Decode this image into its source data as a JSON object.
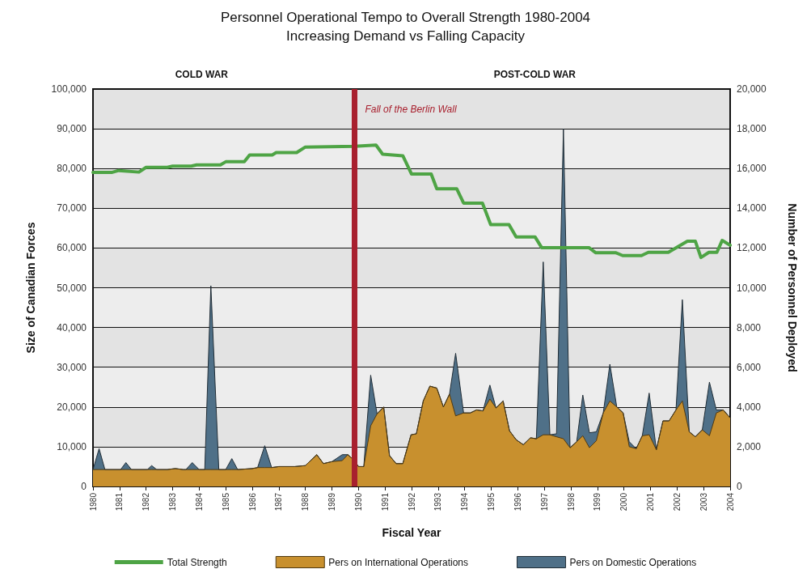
{
  "chart_data": {
    "type": "area",
    "title": "Personnel Operational Tempo to Overall Strength 1980-2004",
    "subtitle": "Increasing Demand vs Falling Capacity",
    "xlabel": "Fiscal Year",
    "ylabel": "Size of Canadian Forces",
    "y2label": "Number of Personnel Deployed",
    "annotations": [
      "COLD WAR",
      "POST-COLD WAR"
    ],
    "x": [
      1980,
      1980.23,
      1980.45,
      1981.04,
      1981.24,
      1981.45,
      1982.05,
      1982.21,
      1982.4,
      1982.8,
      1983.1,
      1983.4,
      1983.5,
      1983.74,
      1984,
      1984.21,
      1984.44,
      1984.74,
      1985,
      1985.23,
      1985.45,
      1986,
      1986.2,
      1986.47,
      1986.73,
      1987,
      1987.6,
      1988,
      1988.43,
      1988.68,
      1989,
      1989.39,
      1989.6,
      1989.85,
      1990,
      1990.2,
      1990.46,
      1990.7,
      1990.95,
      1991.17,
      1991.42,
      1991.67,
      1991.98,
      1992.18,
      1992.44,
      1992.69,
      1992.95,
      1993.2,
      1993.43,
      1993.66,
      1993.96,
      1994.21,
      1994.45,
      1994.69,
      1994.95,
      1995.18,
      1995.45,
      1995.69,
      1995.94,
      1996.21,
      1996.48,
      1996.7,
      1996.96,
      1997.21,
      1997.46,
      1997.72,
      1997.97,
      1998.22,
      1998.45,
      1998.7,
      1998.96,
      1999.22,
      1999.47,
      1999.73,
      1999.97,
      2000.2,
      2000.46,
      2000.69,
      2000.95,
      2001.22,
      2001.47,
      2001.7,
      2001.96,
      2002.2,
      2002.46,
      2002.69,
      2002.95,
      2003.22,
      2003.48,
      2003.74,
      2004
    ],
    "stacked": true,
    "series": [
      {
        "name": "Pers on International Operations",
        "axis": "y2",
        "color": "#c8902e",
        "values": [
          850,
          850,
          850,
          850,
          850,
          850,
          850,
          850,
          850,
          850,
          900,
          850,
          850,
          850,
          850,
          850,
          850,
          850,
          850,
          850,
          850,
          900,
          950,
          950,
          950,
          1000,
          1000,
          1050,
          1600,
          1150,
          1250,
          1300,
          1600,
          1300,
          1000,
          1000,
          3050,
          3650,
          4000,
          1550,
          1150,
          1150,
          2600,
          2650,
          4300,
          5050,
          4950,
          4000,
          4650,
          3550,
          3700,
          3700,
          3850,
          3800,
          4400,
          3950,
          4300,
          2800,
          2350,
          2100,
          2450,
          2400,
          2600,
          2600,
          2500,
          2400,
          1950,
          2250,
          2550,
          1950,
          2300,
          3700,
          4300,
          4000,
          3700,
          2000,
          1900,
          2550,
          2600,
          1850,
          3300,
          3300,
          3850,
          4300,
          2750,
          2500,
          2850,
          2550,
          3700,
          3850,
          3450
        ]
      },
      {
        "name": "Pers on Domestic Operations",
        "axis": "y2",
        "color": "#4f7088",
        "values": [
          0,
          1050,
          0,
          0,
          350,
          0,
          0,
          200,
          0,
          0,
          0,
          0,
          0,
          350,
          0,
          0,
          9250,
          0,
          0,
          550,
          0,
          0,
          0,
          1100,
          0,
          0,
          0,
          0,
          0,
          0,
          0,
          300,
          0,
          0,
          0,
          0,
          2550,
          0,
          0,
          0,
          0,
          0,
          0,
          0,
          0,
          0,
          0,
          0,
          0,
          3150,
          0,
          0,
          0,
          0,
          700,
          0,
          0,
          0,
          0,
          0,
          0,
          0,
          8700,
          0,
          150,
          15600,
          0,
          0,
          2050,
          750,
          450,
          0,
          1850,
          0,
          0,
          250,
          0,
          0,
          2100,
          0,
          0,
          0,
          0,
          5100,
          0,
          0,
          0,
          2700,
          150,
          0,
          0
        ]
      },
      {
        "name": "Total Strength",
        "type": "line",
        "color": "#4ea445",
        "x": [
          1980,
          1980.7,
          1980.97,
          1981.73,
          1982,
          1982.8,
          1983,
          1983.7,
          1983.9,
          1984.8,
          1985,
          1985.7,
          1985.9,
          1986.75,
          1986.9,
          1987.67,
          1988,
          1989.85,
          1990.66,
          1990.91,
          1991.67,
          1992,
          1992.74,
          1992.95,
          1993.7,
          1993.96,
          1994.67,
          1994.98,
          1995.67,
          1995.94,
          1996.65,
          1996.9,
          1998.68,
          1998.94,
          1999.7,
          1999.95,
          2000.66,
          2000.92,
          2001.67,
          2002.39,
          2002.69,
          2002.9,
          2003.2,
          2003.5,
          2003.7,
          2004
        ],
        "values": [
          79000,
          79000,
          79500,
          79100,
          80300,
          80300,
          80600,
          80600,
          80900,
          80900,
          81700,
          81700,
          83400,
          83400,
          84000,
          84000,
          85400,
          85600,
          85900,
          83600,
          83200,
          78600,
          78600,
          74900,
          74900,
          71300,
          71300,
          65900,
          65900,
          62800,
          62800,
          60100,
          60100,
          58800,
          58800,
          58100,
          58100,
          58900,
          58900,
          61700,
          61700,
          57600,
          58900,
          58900,
          61900,
          60700
        ]
      }
    ],
    "xlim": [
      1980,
      2004
    ],
    "xticks": [
      1980,
      1981,
      1982,
      1983,
      1984,
      1985,
      1986,
      1987,
      1988,
      1989,
      1990,
      1991,
      1992,
      1993,
      1994,
      1995,
      1996,
      1997,
      1998,
      1999,
      2000,
      2001,
      2002,
      2003,
      2004
    ],
    "ylim": [
      0,
      100000
    ],
    "yticks": [
      0,
      {
        "value": 10000,
        "label": "10,000"
      },
      {
        "value": 20000,
        "label": "20,000"
      },
      {
        "value": 30000,
        "label": "30,000"
      },
      {
        "value": 40000,
        "label": "40,000"
      },
      {
        "value": 50000,
        "label": "50,000"
      },
      {
        "value": 60000,
        "label": "60,000"
      },
      {
        "value": 70000,
        "label": "70,000"
      },
      {
        "value": 80000,
        "label": "80,000"
      },
      {
        "value": 90000,
        "label": "90,000"
      },
      {
        "value": 100000,
        "label": "100,000"
      }
    ],
    "y2lim": [
      0,
      20000
    ],
    "y2ticks": [
      0,
      {
        "value": 2000,
        "label": "2,000"
      },
      {
        "value": 4000,
        "label": "4,000"
      },
      {
        "value": 6000,
        "label": "6,000"
      },
      {
        "value": 8000,
        "label": "8,000"
      },
      {
        "value": 10000,
        "label": "10,000"
      },
      {
        "value": 12000,
        "label": "12,000"
      },
      {
        "value": 14000,
        "label": "14,000"
      },
      {
        "value": 16000,
        "label": "16,000"
      },
      {
        "value": 18000,
        "label": "18,000"
      },
      {
        "value": 20000,
        "label": "20,000"
      }
    ],
    "ref_lines": [
      {
        "axis": "x",
        "value": 1989.85,
        "label": "Fall of the Berlin Wall",
        "color": "#a8202e"
      }
    ],
    "grid": "y",
    "legend": "bottom",
    "line_style": "solid"
  }
}
